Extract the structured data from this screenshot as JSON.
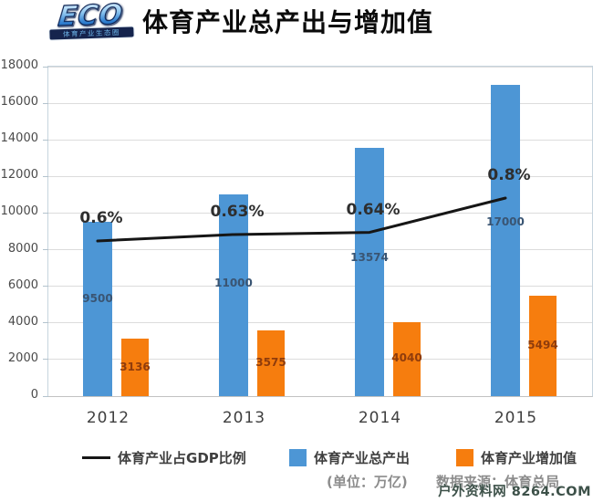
{
  "header": {
    "logo": {
      "main": "ECO",
      "sub": "体育产业生态圈"
    },
    "title": "体育产业总产出与增加值"
  },
  "chart_data": {
    "type": "bar",
    "title": "体育产业总产出与增加值",
    "categories": [
      "2012",
      "2013",
      "2014",
      "2015"
    ],
    "series": [
      {
        "name": "体育产业总产出",
        "type": "bar",
        "color": "#4D96D5",
        "label_color": "#3a5573",
        "values": [
          9500,
          11000,
          13574,
          17000
        ]
      },
      {
        "name": "体育产业增加值",
        "type": "bar",
        "color": "#F67D0E",
        "label_color": "#8f3c0c",
        "values": [
          3136,
          3575,
          4040,
          5494
        ]
      },
      {
        "name": "体育产业占GDP比例",
        "type": "line",
        "color": "#161616",
        "values": [
          0.6,
          0.63,
          0.64,
          0.8
        ],
        "labels": [
          "0.6%",
          "0.63%",
          "0.64%",
          "0.8%"
        ]
      }
    ],
    "y_axis": {
      "min": 0,
      "max": 18000,
      "step": 2000,
      "ticks": [
        "0",
        "2000",
        "4000",
        "6000",
        "8000",
        "10000",
        "12000",
        "14000",
        "16000",
        "18000"
      ]
    },
    "grid": true,
    "legend_position": "bottom"
  },
  "footer": {
    "unit_note": "(单位：万亿)",
    "source_note": "数据来源：体育总局",
    "watermark": "户外资料网 8264.COM"
  }
}
